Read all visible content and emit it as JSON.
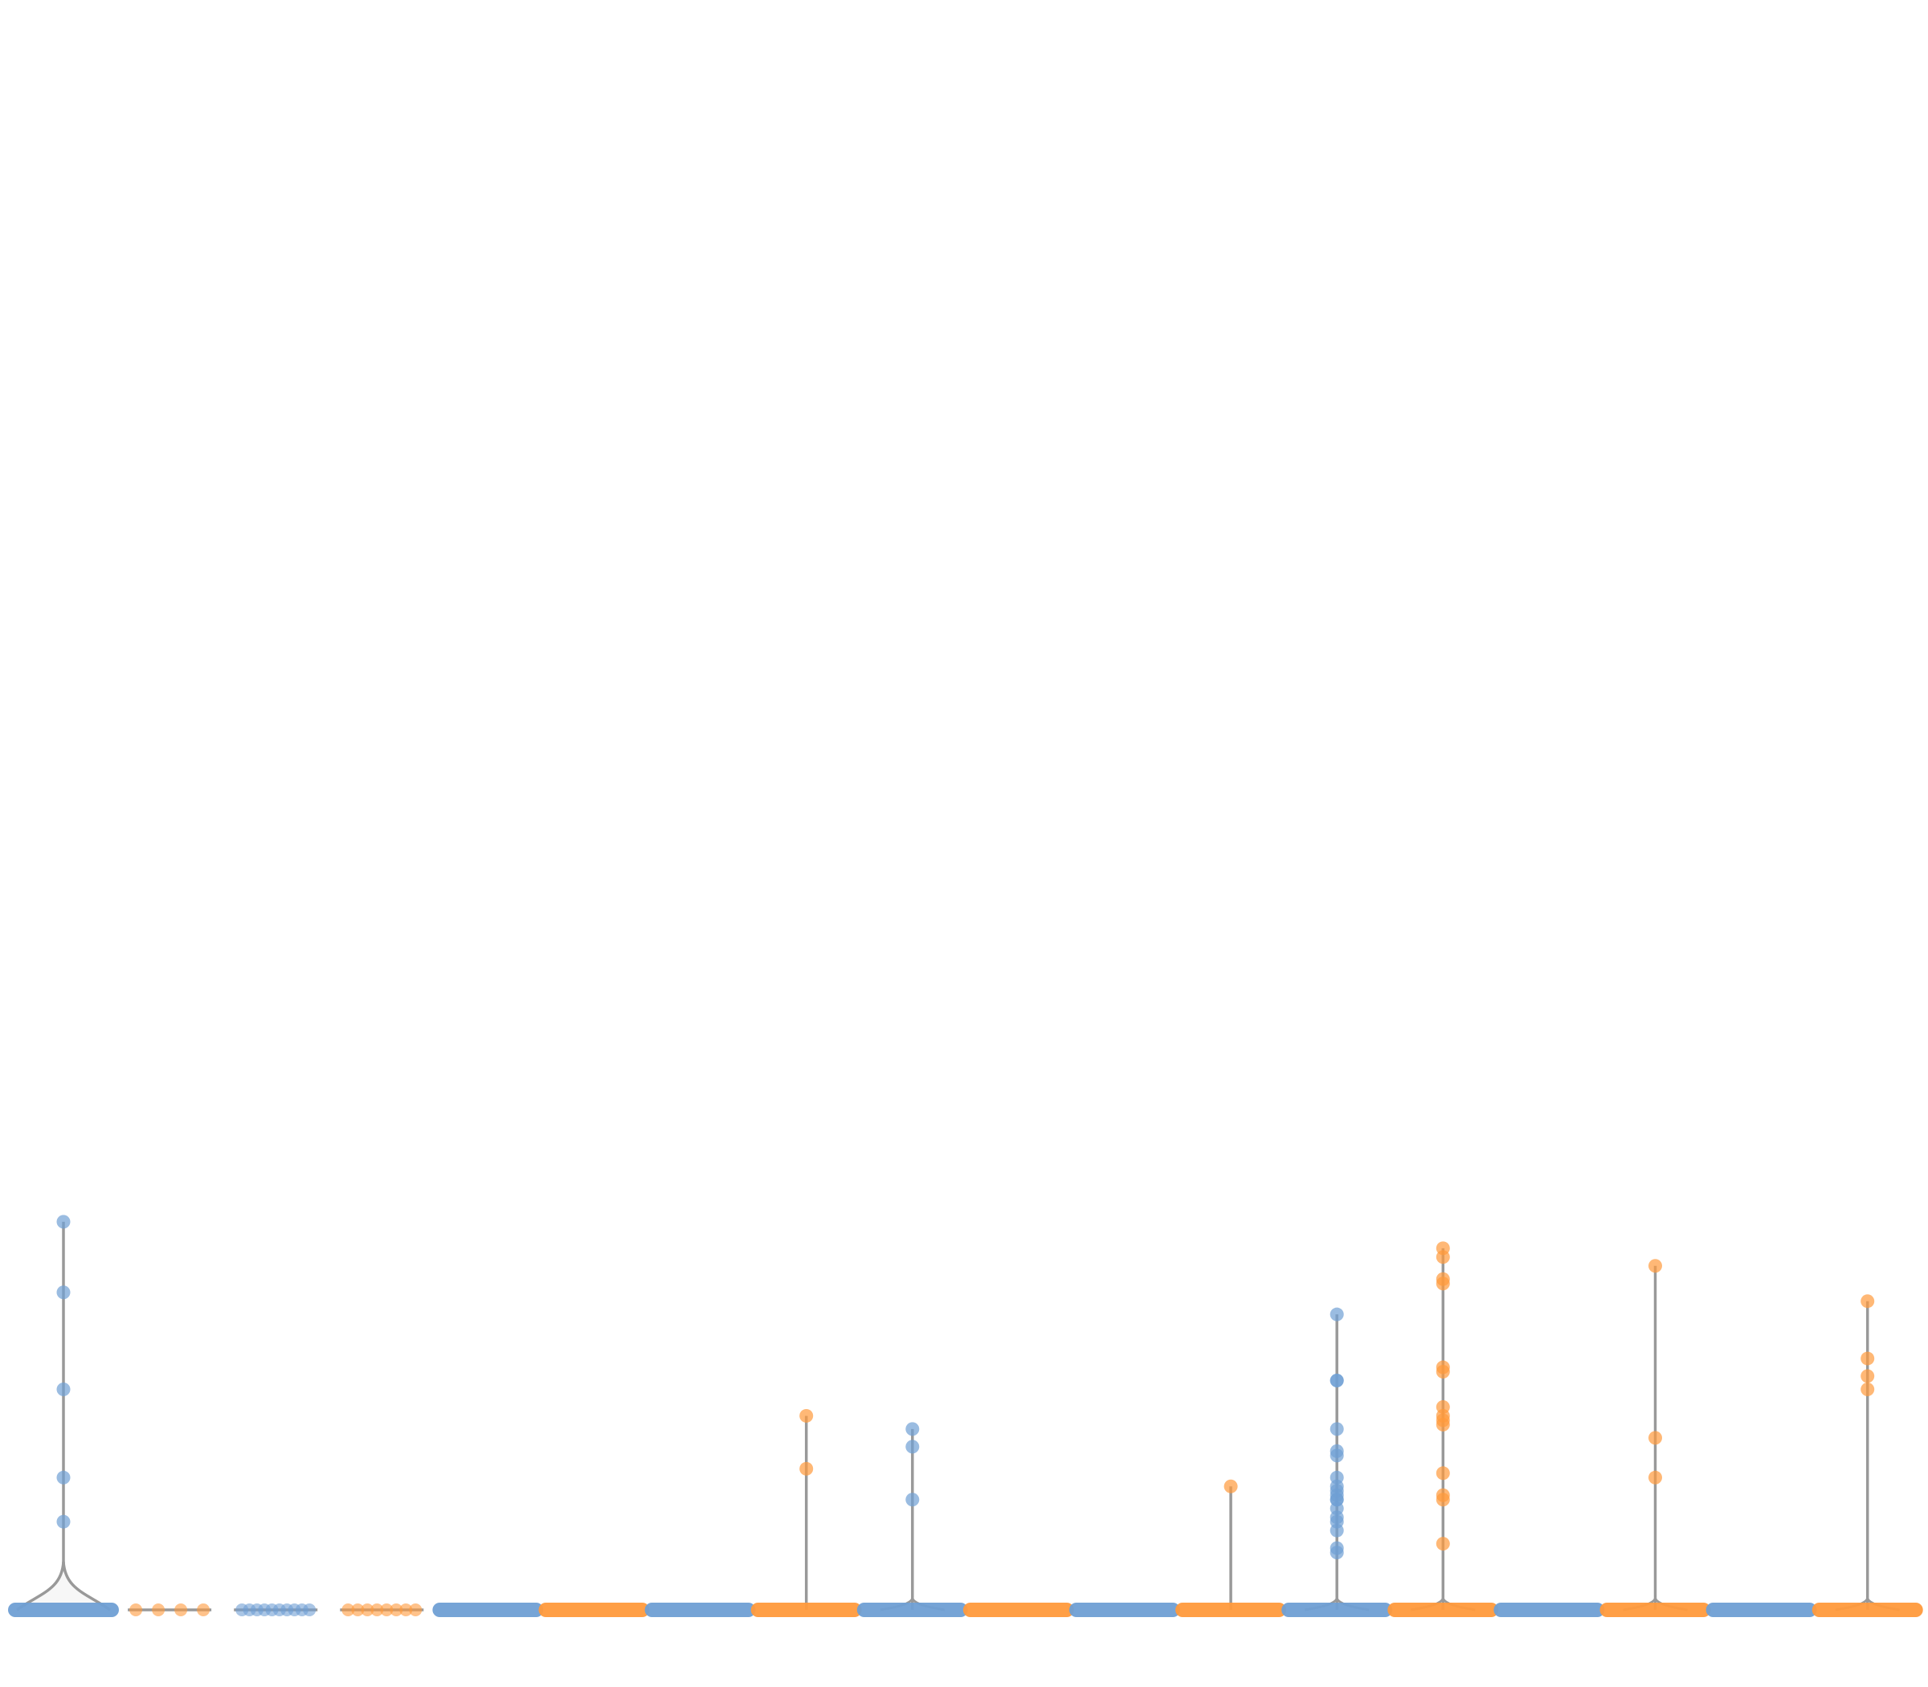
{
  "chart_data": {
    "type": "violin",
    "title": "",
    "xlabel": "",
    "ylabel": "",
    "ylim": [
      0,
      1
    ],
    "grid": false,
    "legend": "none",
    "colors": {
      "blue": "#6f9fd4",
      "orange": "#ff9a3c",
      "outline": "#999999"
    },
    "groups": [
      {
        "color": "blue",
        "kind": "cluster",
        "spread": "wide",
        "points": [
          0.0,
          0.0,
          0.0,
          0.0,
          0.0,
          0.0,
          0.0,
          0.0,
          0.0,
          0.0,
          0.0,
          0.0,
          0.0,
          0.0,
          0.0,
          0.0,
          0.0,
          0.0,
          0.0,
          0.0,
          0.2,
          0.3,
          0.5,
          0.72,
          0.88
        ]
      },
      {
        "color": "orange",
        "kind": "flat",
        "spread": "narrow",
        "points": [
          0.0,
          0.0,
          0.0,
          0.0
        ]
      },
      {
        "color": "blue",
        "kind": "flat",
        "spread": "narrow",
        "points": [
          0.0,
          0.0,
          0.0,
          0.0,
          0.0,
          0.0,
          0.0,
          0.0,
          0.0,
          0.0
        ]
      },
      {
        "color": "orange",
        "kind": "flat",
        "spread": "narrow",
        "points": [
          0.0,
          0.0,
          0.0,
          0.0,
          0.0,
          0.0,
          0.0,
          0.0
        ]
      },
      {
        "color": "blue",
        "kind": "zero",
        "spread": "wide",
        "points": [
          0.0
        ]
      },
      {
        "color": "orange",
        "kind": "zero",
        "spread": "wide",
        "points": [
          0.0
        ]
      },
      {
        "color": "blue",
        "kind": "zero",
        "spread": "wide",
        "points": [
          0.0
        ]
      },
      {
        "color": "orange",
        "kind": "spike",
        "spread": "wide",
        "points": [
          0.0,
          0.32,
          0.44
        ]
      },
      {
        "color": "blue",
        "kind": "spike",
        "spread": "wide",
        "points": [
          0.0,
          0.25,
          0.37,
          0.41
        ]
      },
      {
        "color": "orange",
        "kind": "zero",
        "spread": "wide",
        "points": [
          0.0
        ]
      },
      {
        "color": "blue",
        "kind": "zero",
        "spread": "wide",
        "points": [
          0.0
        ]
      },
      {
        "color": "orange",
        "kind": "spike",
        "spread": "wide",
        "points": [
          0.0,
          0.28
        ]
      },
      {
        "color": "blue",
        "kind": "spike",
        "spread": "wide",
        "points": [
          0.0,
          0.13,
          0.14,
          0.18,
          0.2,
          0.21,
          0.23,
          0.25,
          0.25,
          0.26,
          0.27,
          0.28,
          0.3,
          0.35,
          0.36,
          0.41,
          0.52,
          0.52,
          0.67
        ]
      },
      {
        "color": "orange",
        "kind": "spike",
        "spread": "wide",
        "points": [
          0.0,
          0.15,
          0.25,
          0.26,
          0.31,
          0.42,
          0.43,
          0.44,
          0.46,
          0.54,
          0.55,
          0.74,
          0.75,
          0.8,
          0.82
        ]
      },
      {
        "color": "blue",
        "kind": "zero",
        "spread": "wide",
        "points": [
          0.0
        ]
      },
      {
        "color": "orange",
        "kind": "spike",
        "spread": "wide",
        "points": [
          0.0,
          0.3,
          0.39,
          0.78
        ]
      },
      {
        "color": "blue",
        "kind": "zero",
        "spread": "wide",
        "points": [
          0.0
        ]
      },
      {
        "color": "orange",
        "kind": "spike",
        "spread": "wide",
        "points": [
          0.0,
          0.5,
          0.53,
          0.57,
          0.7
        ]
      }
    ]
  }
}
